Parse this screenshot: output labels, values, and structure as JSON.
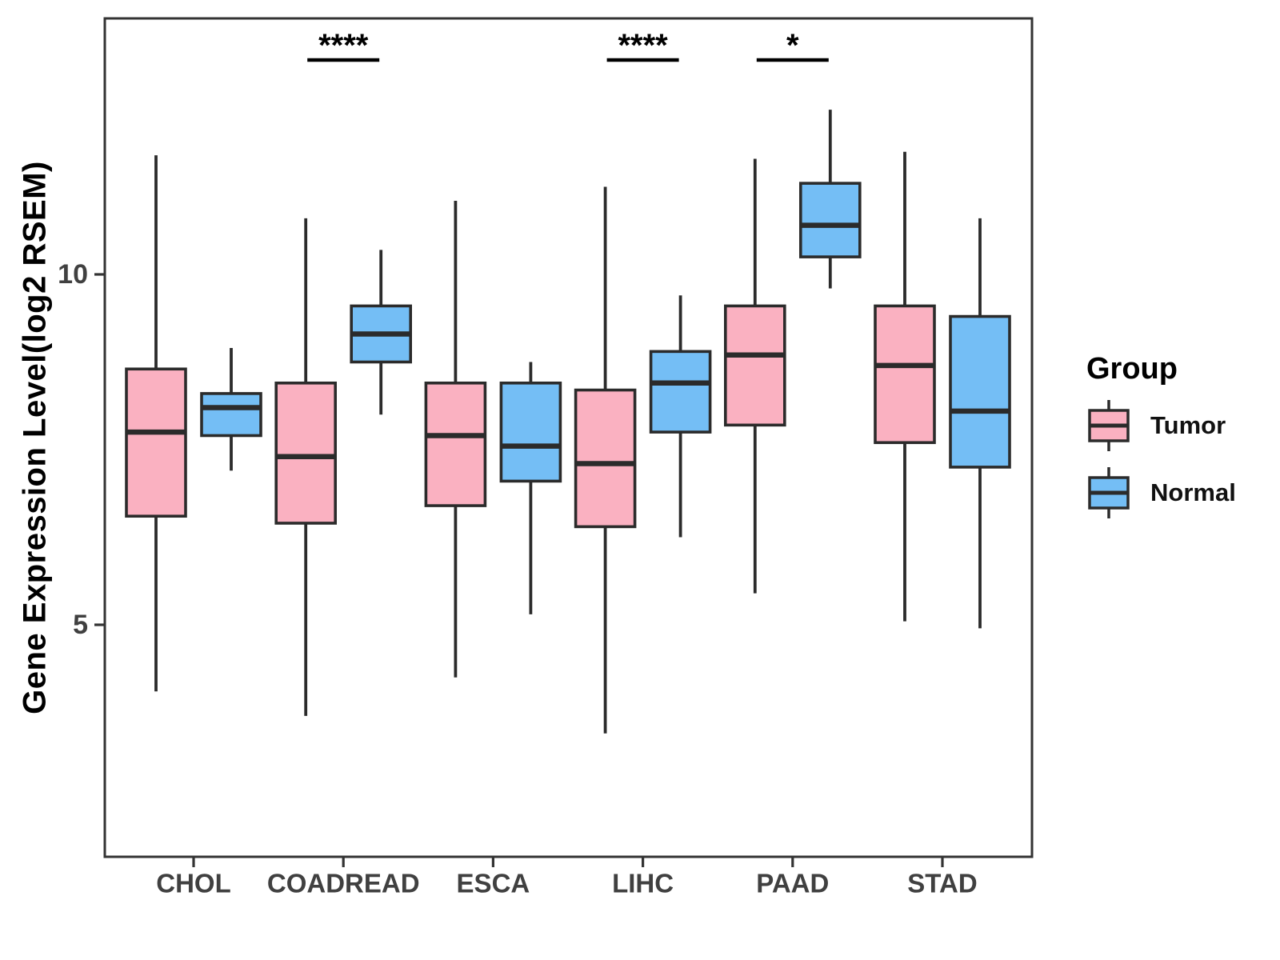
{
  "figure": {
    "ylabel": "Gene Expression Level(log2 RSEM)"
  },
  "legend": {
    "title": "Group",
    "items": [
      {
        "label": "Tumor",
        "color": "#FAB1C1"
      },
      {
        "label": "Normal",
        "color": "#74BEF5"
      }
    ]
  },
  "colors": {
    "tumor_fill": "#FAB1C1",
    "normal_fill": "#74BEF5",
    "line": "#2b2b2b",
    "panel_border": "#333333",
    "tick_label": "#404040",
    "axis_title": "#000000",
    "significance": "#000000"
  },
  "chart_data": {
    "type": "boxplot",
    "title": "",
    "xlabel": "",
    "ylabel": "Gene Expression Level(log2 RSEM)",
    "categories": [
      "CHOL",
      "COADREAD",
      "ESCA",
      "LIHC",
      "PAAD",
      "STAD"
    ],
    "yticks": [
      5,
      10
    ],
    "ylim": [
      1.6,
      13.7
    ],
    "grid": false,
    "legend_position": "right",
    "series": [
      {
        "name": "Tumor",
        "color": "#FAB1C1",
        "boxes": [
          {
            "category": "CHOL",
            "low": 4.05,
            "q1": 6.55,
            "median": 7.75,
            "q3": 8.65,
            "high": 11.7
          },
          {
            "category": "COADREAD",
            "low": 3.7,
            "q1": 6.45,
            "median": 7.4,
            "q3": 8.45,
            "high": 10.8
          },
          {
            "category": "ESCA",
            "low": 4.25,
            "q1": 6.7,
            "median": 7.7,
            "q3": 8.45,
            "high": 11.05
          },
          {
            "category": "LIHC",
            "low": 3.45,
            "q1": 6.4,
            "median": 7.3,
            "q3": 8.35,
            "high": 11.25
          },
          {
            "category": "PAAD",
            "low": 5.45,
            "q1": 7.85,
            "median": 8.85,
            "q3": 9.55,
            "high": 11.65
          },
          {
            "category": "STAD",
            "low": 5.05,
            "q1": 7.6,
            "median": 8.7,
            "q3": 9.55,
            "high": 11.75
          }
        ]
      },
      {
        "name": "Normal",
        "color": "#74BEF5",
        "boxes": [
          {
            "category": "CHOL",
            "low": 7.2,
            "q1": 7.7,
            "median": 8.1,
            "q3": 8.3,
            "high": 8.95
          },
          {
            "category": "COADREAD",
            "low": 8.0,
            "q1": 8.75,
            "median": 9.15,
            "q3": 9.55,
            "high": 10.35
          },
          {
            "category": "ESCA",
            "low": 5.15,
            "q1": 7.05,
            "median": 7.55,
            "q3": 8.45,
            "high": 8.75
          },
          {
            "category": "LIHC",
            "low": 6.25,
            "q1": 7.75,
            "median": 8.45,
            "q3": 8.9,
            "high": 9.7
          },
          {
            "category": "PAAD",
            "low": 9.8,
            "q1": 10.25,
            "median": 10.7,
            "q3": 11.3,
            "high": 12.35
          },
          {
            "category": "STAD",
            "low": 4.95,
            "q1": 7.25,
            "median": 8.05,
            "q3": 9.4,
            "high": 10.8
          }
        ]
      }
    ],
    "significance": [
      {
        "category": "COADREAD",
        "label": "****"
      },
      {
        "category": "LIHC",
        "label": "****"
      },
      {
        "category": "PAAD",
        "label": "*"
      }
    ]
  }
}
